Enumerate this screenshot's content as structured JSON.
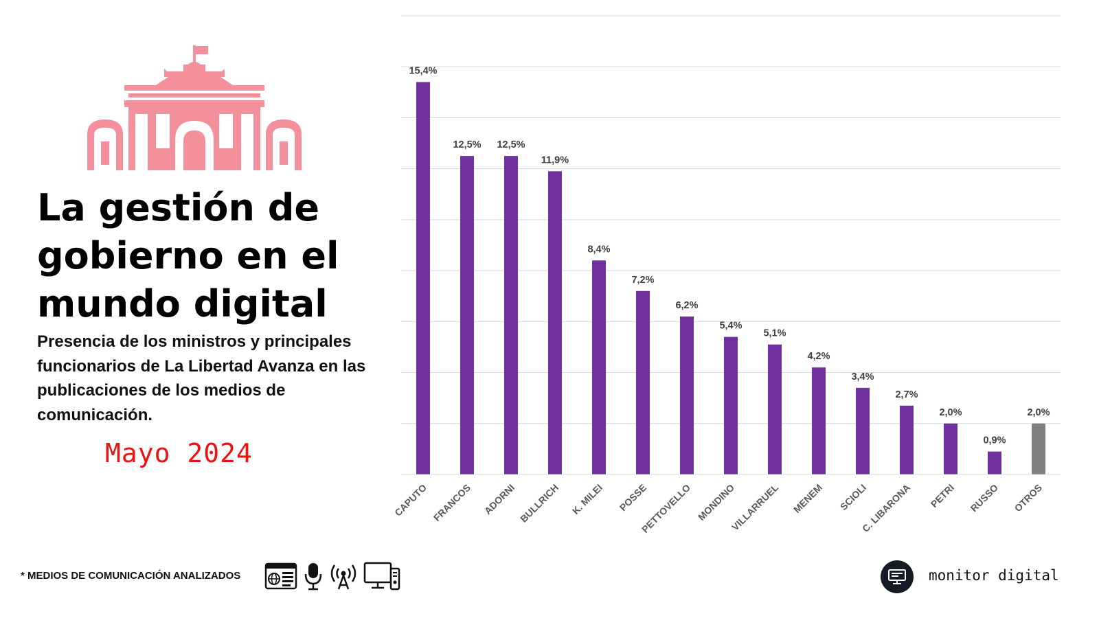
{
  "header": {
    "title": "La gestión de gobierno en el mundo digital",
    "subtitle": "Presencia de los ministros y principales funcionarios de La Libertad Avanza en las publicaciones de los medios de comunicación.",
    "period": "Mayo  2024"
  },
  "chart_data": {
    "type": "bar",
    "title": "",
    "xlabel": "",
    "ylabel": "",
    "ylim": [
      0,
      18
    ],
    "grid": true,
    "categories": [
      "CAPUTO",
      "FRANCOS",
      "ADORNI",
      "BULLRICH",
      "K. MILEI",
      "POSSE",
      "PETTOVELLO",
      "MONDINO",
      "VILLARRUEL",
      "MENEM",
      "SCIOLI",
      "C. LIBARONA",
      "PETRI",
      "RUSSO",
      "OTROS"
    ],
    "values": [
      15.4,
      12.5,
      12.5,
      11.9,
      8.4,
      7.2,
      6.2,
      5.4,
      5.1,
      4.2,
      3.4,
      2.7,
      2.0,
      0.9,
      2.0
    ],
    "labels": [
      "15,4%",
      "12,5%",
      "12,5%",
      "11,9%",
      "8,4%",
      "7,2%",
      "6,2%",
      "5,4%",
      "5,1%",
      "4,2%",
      "3,4%",
      "2,7%",
      "2,0%",
      "0,9%",
      "2,0%"
    ],
    "colors": {
      "primary": "#7030a0",
      "other": "#808080",
      "grid": "#d9d9d9"
    }
  },
  "footer": {
    "note": "* MEDIOS DE COMUNICACIÓN ANALIZADOS",
    "media_icons": [
      "news-website-icon",
      "microphone-icon",
      "broadcast-antenna-icon",
      "tv-monitor-icon"
    ],
    "brand": "monitor digital"
  },
  "theme": {
    "building_color": "#f4909c",
    "period_color": "#ee1111"
  }
}
